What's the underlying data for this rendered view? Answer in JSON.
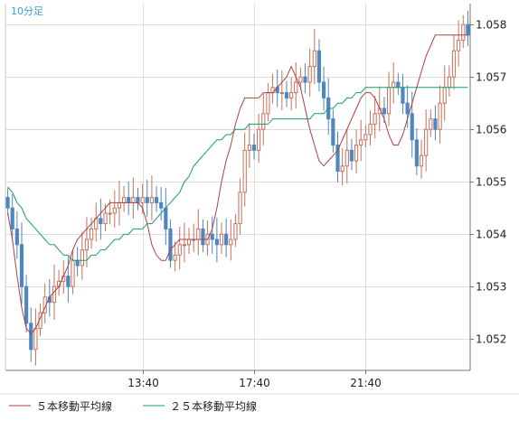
{
  "chart_data": {
    "type": "candlestick",
    "title": "",
    "timeframe_label": "10分足",
    "xlabel": "",
    "ylabel": "",
    "ylim": [
      1.0514,
      1.0584
    ],
    "y_ticks": [
      "1.058",
      "1.057",
      "1.056",
      "1.055",
      "1.054",
      "1.053",
      "1.052"
    ],
    "y_tick_values": [
      1.058,
      1.057,
      1.056,
      1.055,
      1.054,
      1.053,
      1.052
    ],
    "x_ticks": [
      {
        "label": "13:40",
        "index": 29
      },
      {
        "label": "17:40",
        "index": 53
      },
      {
        "label": "21:40",
        "index": 77
      }
    ],
    "grid": true,
    "legend_position": "bottom",
    "colors": {
      "up": "#c8705a",
      "down": "#4f86c0",
      "ma5": "#b04040",
      "ma25": "#1a9a70",
      "grid": "#dcdcdc",
      "axis": "#777777"
    },
    "series": [
      {
        "name": "５本移動平均線",
        "key": "ma5",
        "color": "#b04040"
      },
      {
        "name": "２５本移動平均線",
        "key": "ma25",
        "color": "#1a9a70"
      }
    ],
    "close": [
      1.0545,
      1.0541,
      1.0538,
      1.053,
      1.0523,
      1.0518,
      1.0522,
      1.0525,
      1.0528,
      1.0527,
      1.053,
      1.0531,
      1.0532,
      1.053,
      1.0535,
      1.0534,
      1.0537,
      1.0539,
      1.0541,
      1.0543,
      1.0542,
      1.0544,
      1.0544,
      1.0545,
      1.0546,
      1.0547,
      1.0546,
      1.0547,
      1.0546,
      1.0547,
      1.0546,
      1.0547,
      1.0546,
      1.0545,
      1.0541,
      1.0535,
      1.0536,
      1.0538,
      1.0538,
      1.0539,
      1.0539,
      1.0541,
      1.0538,
      1.054,
      1.0539,
      1.0538,
      1.054,
      1.0538,
      1.0539,
      1.0542,
      1.0548,
      1.0556,
      1.0557,
      1.0556,
      1.056,
      1.0563,
      1.0567,
      1.0568,
      1.0567,
      1.0567,
      1.0566,
      1.0567,
      1.0569,
      1.057,
      1.0569,
      1.0572,
      1.0575,
      1.0569,
      1.0566,
      1.0562,
      1.0557,
      1.0552,
      1.0553,
      1.0556,
      1.0554,
      1.0557,
      1.0558,
      1.0559,
      1.0561,
      1.0563,
      1.0564,
      1.0563,
      1.0568,
      1.0569,
      1.0568,
      1.0565,
      1.0563,
      1.0558,
      1.0553,
      1.0555,
      1.056,
      1.0562,
      1.056,
      1.0565,
      1.0568,
      1.057,
      1.0575,
      1.0577,
      1.058,
      1.0578
    ],
    "ma5": [
      1.0544,
      1.0539,
      1.0532,
      1.0526,
      1.0522,
      1.0521,
      1.0522,
      1.0524,
      1.0526,
      1.0528,
      1.0529,
      1.053,
      1.0532,
      1.0534,
      1.0537,
      1.0539,
      1.054,
      1.0541,
      1.0542,
      1.0543,
      1.0544,
      1.0545,
      1.0546,
      1.0546,
      1.0546,
      1.0546,
      1.0546,
      1.0546,
      1.0546,
      1.0545,
      1.0542,
      1.0538,
      1.0536,
      1.0535,
      1.0535,
      1.0537,
      1.0538,
      1.0539,
      1.0539,
      1.0539,
      1.0539,
      1.0539,
      1.0539,
      1.0539,
      1.0541,
      1.0545,
      1.055,
      1.0554,
      1.0557,
      1.0561,
      1.0564,
      1.0566,
      1.0566,
      1.0566,
      1.0566,
      1.0567,
      1.0567,
      1.0567,
      1.0568,
      1.0569,
      1.057,
      1.0572,
      1.057,
      1.0568,
      1.0564,
      1.056,
      1.0557,
      1.0554,
      1.0553,
      1.0554,
      1.0555,
      1.0556,
      1.0558,
      1.056,
      1.0562,
      1.0564,
      1.0566,
      1.0567,
      1.0567,
      1.0566,
      1.0564,
      1.0562,
      1.0559,
      1.0557,
      1.0557,
      1.0559,
      1.0562,
      1.0565,
      1.0568,
      1.0571,
      1.0574,
      1.0576,
      1.0578,
      1.0578,
      1.0578,
      1.0578,
      1.0578,
      1.0578,
      1.0578,
      1.0578
    ],
    "ma25": [
      1.0549,
      1.0548,
      1.0546,
      1.0545,
      1.0543,
      1.0542,
      1.0541,
      1.054,
      1.0539,
      1.0538,
      1.0538,
      1.0537,
      1.0536,
      1.0536,
      1.0535,
      1.0535,
      1.0535,
      1.0535,
      1.0536,
      1.0536,
      1.0537,
      1.0537,
      1.0538,
      1.0539,
      1.0539,
      1.054,
      1.054,
      1.0541,
      1.0541,
      1.0541,
      1.0542,
      1.0542,
      1.0543,
      1.0544,
      1.0545,
      1.0546,
      1.0547,
      1.0548,
      1.055,
      1.0551,
      1.0553,
      1.0554,
      1.0555,
      1.0556,
      1.0557,
      1.0558,
      1.0558,
      1.0559,
      1.0559,
      1.056,
      1.056,
      1.056,
      1.0561,
      1.0561,
      1.0561,
      1.0561,
      1.0561,
      1.0562,
      1.0562,
      1.0562,
      1.0562,
      1.0562,
      1.0562,
      1.0562,
      1.0562,
      1.0562,
      1.0563,
      1.0563,
      1.0563,
      1.0564,
      1.0564,
      1.0565,
      1.0565,
      1.0566,
      1.0566,
      1.0567,
      1.0567,
      1.0568,
      1.0568,
      1.0568,
      1.0568,
      1.0568,
      1.0568,
      1.0568,
      1.0568,
      1.0568,
      1.0568,
      1.0568,
      1.0568,
      1.0568,
      1.0568,
      1.0568,
      1.0568,
      1.0568,
      1.0568,
      1.0568,
      1.0568,
      1.0568,
      1.0568,
      1.0568
    ]
  }
}
